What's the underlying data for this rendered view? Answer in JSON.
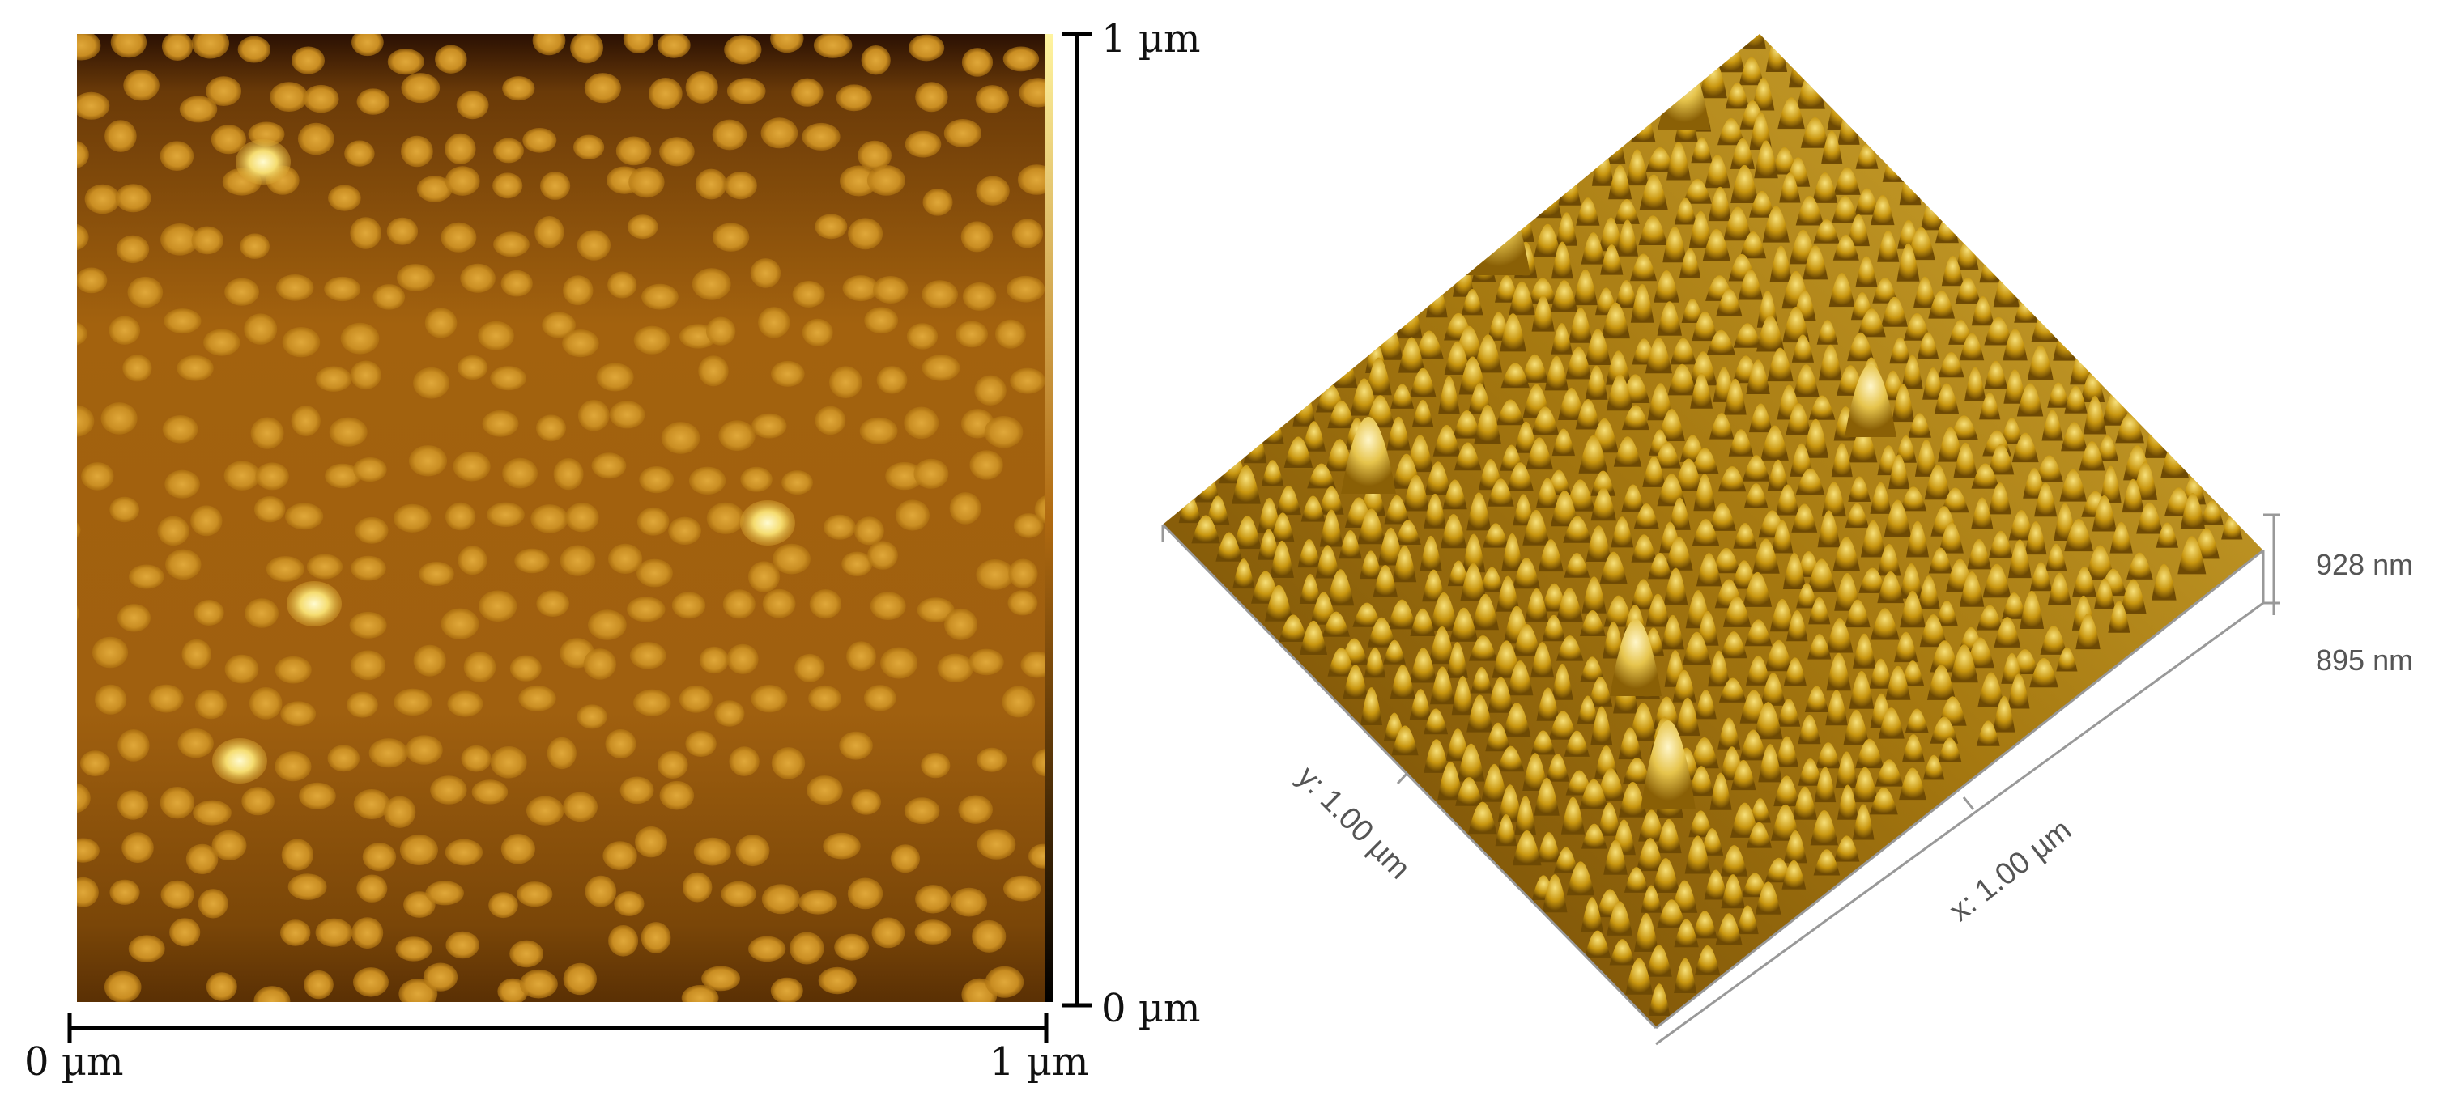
{
  "left_panel": {
    "x_axis": {
      "start_label": "0 µm",
      "end_label": "1 µm"
    },
    "y_axis": {
      "top_label": "1 µm",
      "bottom_label": "0 µm"
    }
  },
  "right_panel": {
    "y_axis_label": "y: 1.00 µm",
    "x_axis_label": "x: 1.00 µm",
    "z_top_label": "928 nm",
    "z_bottom_label": "895 nm"
  },
  "colors": {
    "background": "#ffffff",
    "afm_dark": "#3a1a02",
    "afm_mid": "#b06a10",
    "afm_light": "#fff4a0",
    "surface_base": "#8a5a05",
    "surface_peak": "#f0d66a",
    "axis": "#000000",
    "axis_3d": "#999999"
  }
}
